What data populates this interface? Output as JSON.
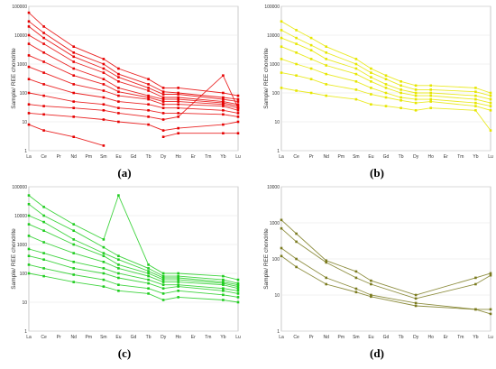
{
  "chart_data": [
    {
      "type": "line",
      "panel_label": "(a)",
      "ylabel": "Sample/ REE chondrite",
      "x": [
        "La",
        "Ce",
        "Pr",
        "Nd",
        "Pm",
        "Sm",
        "Eu",
        "Gd",
        "Tb",
        "Dy",
        "Ho",
        "Er",
        "Tm",
        "Yb",
        "Lu"
      ],
      "y_scale": "log",
      "ylim": [
        1,
        100000
      ],
      "y_ticks": [
        "1",
        "10",
        "100",
        "1000",
        "10000",
        "100000"
      ],
      "color": "#e60000",
      "grid": true,
      "series": [
        {
          "values": [
            60000,
            20000,
            null,
            4000,
            null,
            1500,
            700,
            null,
            300,
            150,
            150,
            null,
            null,
            100,
            80
          ]
        },
        {
          "values": [
            30000,
            12000,
            null,
            2500,
            null,
            1000,
            450,
            null,
            200,
            110,
            100,
            null,
            null,
            70,
            60
          ]
        },
        {
          "values": [
            20000,
            8000,
            null,
            1800,
            null,
            700,
            350,
            null,
            150,
            90,
            90,
            null,
            null,
            60,
            50
          ]
        },
        {
          "values": [
            10000,
            5000,
            null,
            1200,
            null,
            500,
            250,
            null,
            120,
            70,
            70,
            null,
            null,
            50,
            40
          ]
        },
        {
          "values": [
            5000,
            2500,
            null,
            700,
            null,
            300,
            150,
            null,
            80,
            60,
            60,
            null,
            null,
            45,
            35
          ]
        },
        {
          "values": [
            2000,
            1200,
            null,
            400,
            null,
            200,
            110,
            null,
            70,
            50,
            50,
            null,
            null,
            40,
            30
          ]
        },
        {
          "values": [
            800,
            500,
            null,
            200,
            null,
            120,
            80,
            null,
            60,
            40,
            40,
            null,
            null,
            35,
            25
          ]
        },
        {
          "values": [
            300,
            200,
            null,
            100,
            null,
            70,
            50,
            null,
            40,
            30,
            30,
            null,
            null,
            25,
            20
          ]
        },
        {
          "values": [
            100,
            80,
            null,
            50,
            null,
            40,
            30,
            null,
            25,
            20,
            20,
            null,
            null,
            18,
            15
          ]
        },
        {
          "values": [
            40,
            35,
            null,
            30,
            null,
            25,
            20,
            null,
            15,
            12,
            15,
            null,
            null,
            400,
            30
          ]
        },
        {
          "values": [
            20,
            18,
            null,
            15,
            null,
            12,
            10,
            null,
            8,
            5,
            6,
            null,
            null,
            8,
            10
          ]
        },
        {
          "values": [
            8,
            5,
            null,
            3,
            null,
            1.5,
            null,
            null,
            null,
            null,
            null,
            null,
            null,
            null,
            null
          ]
        },
        {
          "values": [
            null,
            null,
            null,
            null,
            null,
            null,
            null,
            null,
            null,
            3,
            4,
            null,
            null,
            4,
            4
          ]
        }
      ]
    },
    {
      "type": "line",
      "panel_label": "(b)",
      "ylabel": "Sample/ REE chondrite",
      "x": [
        "La",
        "Ce",
        "Pr",
        "Nd",
        "Pm",
        "Sm",
        "Eu",
        "Gd",
        "Tb",
        "Dy",
        "Ho",
        "Er",
        "Tm",
        "Yb",
        "Lu"
      ],
      "y_scale": "log",
      "ylim": [
        1,
        100000
      ],
      "y_ticks": [
        "1",
        "10",
        "100",
        "1000",
        "10000",
        "100000"
      ],
      "color": "#e6e600",
      "grid": true,
      "series": [
        {
          "values": [
            30000,
            15000,
            8000,
            4000,
            null,
            1500,
            700,
            400,
            250,
            180,
            180,
            null,
            null,
            150,
            100
          ]
        },
        {
          "values": [
            15000,
            8000,
            4500,
            2500,
            null,
            1000,
            500,
            300,
            180,
            130,
            130,
            null,
            null,
            110,
            80
          ]
        },
        {
          "values": [
            8000,
            5000,
            3000,
            1500,
            null,
            700,
            350,
            200,
            130,
            100,
            100,
            null,
            null,
            80,
            60
          ]
        },
        {
          "values": [
            4000,
            2500,
            1500,
            900,
            null,
            450,
            250,
            150,
            100,
            80,
            80,
            null,
            null,
            60,
            45
          ]
        },
        {
          "values": [
            1500,
            1000,
            700,
            450,
            null,
            250,
            150,
            100,
            70,
            60,
            60,
            null,
            null,
            45,
            35
          ]
        },
        {
          "values": [
            500,
            400,
            300,
            200,
            null,
            130,
            90,
            70,
            55,
            45,
            50,
            null,
            null,
            35,
            25
          ]
        },
        {
          "values": [
            150,
            120,
            100,
            80,
            null,
            60,
            40,
            35,
            30,
            25,
            30,
            null,
            null,
            25,
            5
          ]
        }
      ]
    },
    {
      "type": "line",
      "panel_label": "(c)",
      "ylabel": "Sample/ REE chondrite",
      "x": [
        "La",
        "Ce",
        "Pr",
        "Nd",
        "Pm",
        "Sm",
        "Eu",
        "Gd",
        "Tb",
        "Dy",
        "Ho",
        "Er",
        "Tm",
        "Yb",
        "Lu"
      ],
      "y_scale": "log",
      "ylim": [
        1,
        100000
      ],
      "y_ticks": [
        "1",
        "10",
        "100",
        "1000",
        "10000",
        "100000"
      ],
      "color": "#1fcc1f",
      "grid": true,
      "series": [
        {
          "values": [
            50000,
            20000,
            null,
            5000,
            null,
            1500,
            50000,
            null,
            200,
            100,
            100,
            null,
            null,
            80,
            60
          ]
        },
        {
          "values": [
            25000,
            10000,
            null,
            3000,
            null,
            800,
            400,
            null,
            150,
            80,
            80,
            null,
            null,
            60,
            45
          ]
        },
        {
          "values": [
            10000,
            6000,
            null,
            1500,
            null,
            500,
            300,
            null,
            120,
            70,
            70,
            null,
            null,
            50,
            40
          ]
        },
        {
          "values": [
            5000,
            3000,
            null,
            1000,
            null,
            400,
            200,
            null,
            100,
            60,
            60,
            null,
            null,
            45,
            35
          ]
        },
        {
          "values": [
            2000,
            1200,
            null,
            500,
            null,
            250,
            150,
            null,
            80,
            50,
            50,
            null,
            null,
            40,
            30
          ]
        },
        {
          "values": [
            700,
            500,
            null,
            250,
            null,
            150,
            100,
            null,
            60,
            40,
            40,
            null,
            null,
            30,
            25
          ]
        },
        {
          "values": [
            400,
            300,
            null,
            150,
            null,
            100,
            70,
            null,
            45,
            30,
            35,
            null,
            null,
            25,
            20
          ]
        },
        {
          "values": [
            200,
            150,
            null,
            90,
            null,
            60,
            40,
            null,
            30,
            20,
            25,
            null,
            null,
            18,
            15
          ]
        },
        {
          "values": [
            100,
            80,
            null,
            50,
            null,
            35,
            25,
            null,
            20,
            12,
            15,
            null,
            null,
            12,
            10
          ]
        }
      ]
    },
    {
      "type": "line",
      "panel_label": "(d)",
      "ylabel": "Sample/ REE chondrite",
      "x": [
        "La",
        "Ce",
        "Pr",
        "Nd",
        "Pm",
        "Sm",
        "Eu",
        "Gd",
        "Tb",
        "Dy",
        "Ho",
        "Er",
        "Tm",
        "Yb",
        "Lu"
      ],
      "y_scale": "log",
      "ylim": [
        1,
        10000
      ],
      "y_ticks": [
        "1",
        "10",
        "100",
        "1000",
        "10000"
      ],
      "color": "#7a7a1e",
      "grid": true,
      "series": [
        {
          "values": [
            1200,
            500,
            null,
            90,
            null,
            45,
            25,
            null,
            null,
            10,
            null,
            null,
            null,
            30,
            40
          ]
        },
        {
          "values": [
            700,
            300,
            null,
            80,
            null,
            30,
            20,
            null,
            null,
            8,
            null,
            null,
            null,
            20,
            35
          ]
        },
        {
          "values": [
            200,
            100,
            null,
            30,
            null,
            15,
            10,
            null,
            null,
            6,
            null,
            null,
            null,
            4,
            3
          ]
        },
        {
          "values": [
            120,
            60,
            null,
            20,
            null,
            12,
            9,
            null,
            null,
            5,
            null,
            null,
            null,
            4,
            4
          ]
        }
      ]
    }
  ]
}
